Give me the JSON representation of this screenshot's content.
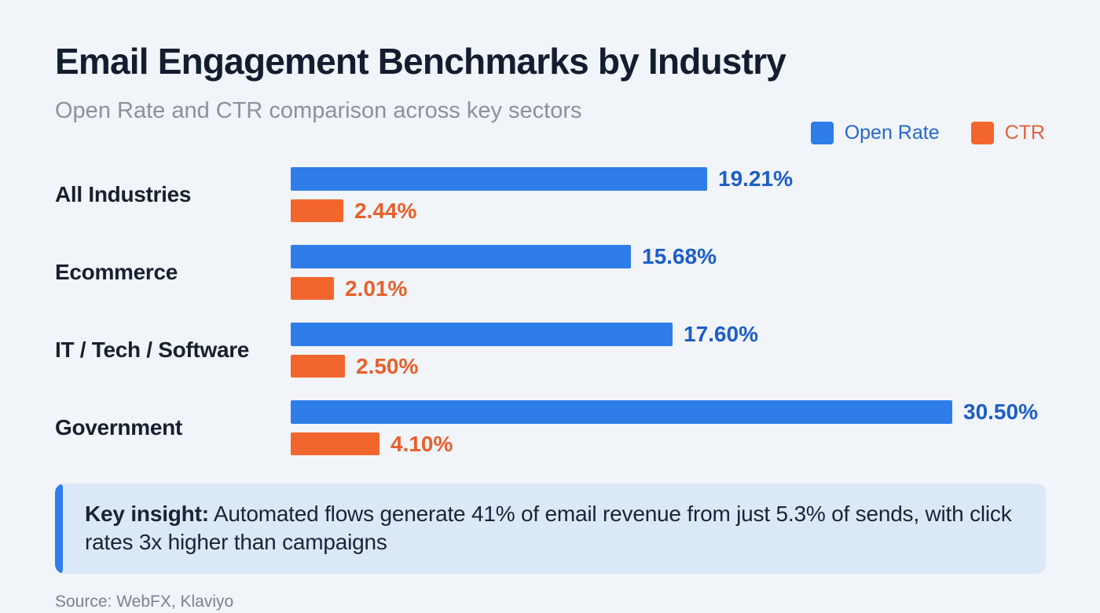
{
  "header": {
    "title": "Email Engagement Benchmarks by Industry",
    "subtitle": "Open Rate and CTR comparison across key sectors"
  },
  "legend": [
    {
      "label": "Open Rate",
      "color": "#2e7de9",
      "text_color": "#2767cf"
    },
    {
      "label": "CTR",
      "color": "#f2662e",
      "text_color": "#e0613a"
    }
  ],
  "chart_data": {
    "type": "bar",
    "orientation": "horizontal",
    "categories": [
      "All Industries",
      "Ecommerce",
      "IT / Tech / Software",
      "Government"
    ],
    "series": [
      {
        "name": "Open Rate",
        "values": [
          19.21,
          15.68,
          17.6,
          30.5
        ],
        "color": "#2e7de9",
        "label_color": "#1d5ec6"
      },
      {
        "name": "CTR",
        "values": [
          2.44,
          2.01,
          2.5,
          4.1
        ],
        "color": "#f2662e",
        "label_color": "#e7602a"
      }
    ],
    "value_suffix": "%",
    "value_decimals": 2,
    "xlim": [
      0,
      30.5
    ],
    "grid": false,
    "legend_position": "top-right",
    "value_labels": [
      "19.21%",
      "2.44%",
      "15.68%",
      "2.01%",
      "17.60%",
      "2.50%",
      "30.50%",
      "4.10%"
    ]
  },
  "insight": {
    "prefix": "Key insight:",
    "text": "Automated flows generate 41% of email revenue from just 5.3% of sends, with click rates 3x higher than campaigns",
    "accent_color": "#2e7de9",
    "background": "#dbe8f8"
  },
  "source": "Source: WebFX, Klaviyo"
}
